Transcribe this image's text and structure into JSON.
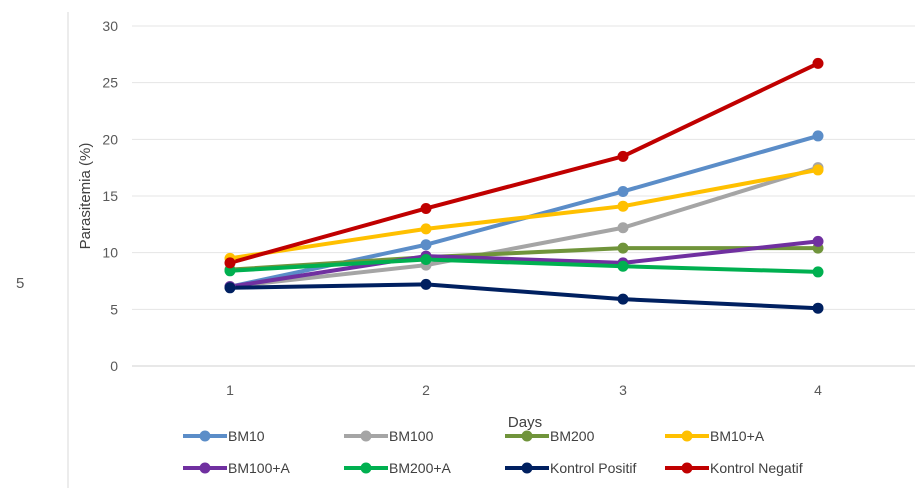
{
  "side_mark": "5",
  "chart_data": {
    "type": "line",
    "title": "",
    "xlabel": "Days",
    "ylabel": "Parasitemia (%)",
    "x": [
      1,
      2,
      3,
      4
    ],
    "x_tick_labels": [
      "1",
      "2",
      "3",
      "4"
    ],
    "ylim": [
      0,
      30
    ],
    "y_tick_labels": [
      "0",
      "5",
      "10",
      "15",
      "20",
      "25",
      "30"
    ],
    "grid": "horizontal",
    "legend_position": "bottom",
    "series": [
      {
        "name": "BM10",
        "color": "#5B8DC8",
        "values": [
          7.0,
          10.7,
          15.4,
          20.3
        ]
      },
      {
        "name": "BM100",
        "color": "#A5A5A5",
        "values": [
          7.0,
          8.9,
          12.2,
          17.5
        ]
      },
      {
        "name": "BM200",
        "color": "#70943B",
        "values": [
          8.5,
          9.6,
          10.4,
          10.4
        ]
      },
      {
        "name": "BM10+A",
        "color": "#FFC000",
        "values": [
          9.5,
          12.1,
          14.1,
          17.3
        ]
      },
      {
        "name": "BM100+A",
        "color": "#7030A0",
        "values": [
          7.0,
          9.7,
          9.1,
          11.0
        ]
      },
      {
        "name": "BM200+A",
        "color": "#00B050",
        "values": [
          8.4,
          9.4,
          8.8,
          8.3
        ]
      },
      {
        "name": "Kontrol Positif",
        "color": "#002060",
        "values": [
          6.9,
          7.2,
          5.9,
          5.1
        ]
      },
      {
        "name": "Kontrol Negatif",
        "color": "#C00000",
        "values": [
          9.1,
          13.9,
          18.5,
          26.7
        ]
      }
    ]
  }
}
